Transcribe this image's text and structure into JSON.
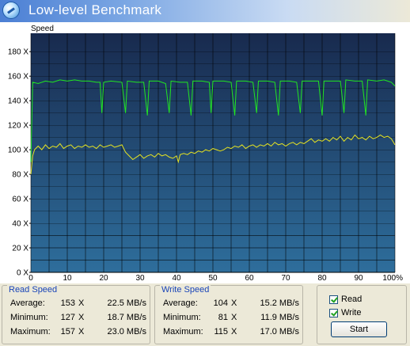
{
  "window": {
    "title": "Low-level Benchmark"
  },
  "chart_data": {
    "type": "line",
    "ylabel": "Speed",
    "y_ticks": [
      "0 X",
      "20 X",
      "40 X",
      "60 X",
      "80 X",
      "100 X",
      "120 X",
      "140 X",
      "160 X",
      "180 X"
    ],
    "x_ticks": [
      "0",
      "10",
      "20",
      "30",
      "40",
      "50",
      "60",
      "70",
      "80",
      "90",
      "100%"
    ],
    "xlim": [
      0,
      100
    ],
    "ylim": [
      0,
      195
    ],
    "grid": true,
    "colors": {
      "background_top": "#182a4e",
      "background_bottom": "#2e6e9c",
      "grid": "#000000",
      "read": "#21e621",
      "write": "#e6e321"
    },
    "series": [
      {
        "key": "read",
        "values": [
          [
            0,
            90
          ],
          [
            0.5,
            155
          ],
          [
            2,
            154
          ],
          [
            4,
            156
          ],
          [
            6,
            155
          ],
          [
            8,
            157
          ],
          [
            10,
            156
          ],
          [
            12,
            157
          ],
          [
            14,
            156
          ],
          [
            16,
            156
          ],
          [
            18,
            155
          ],
          [
            19,
            155
          ],
          [
            19.5,
            130
          ],
          [
            20,
            155
          ],
          [
            22,
            156
          ],
          [
            25,
            155
          ],
          [
            26,
            130
          ],
          [
            26.5,
            156
          ],
          [
            29,
            155
          ],
          [
            31,
            155
          ],
          [
            32,
            128
          ],
          [
            32.5,
            156
          ],
          [
            35,
            156
          ],
          [
            37,
            154
          ],
          [
            38,
            130
          ],
          [
            38.5,
            156
          ],
          [
            41,
            155
          ],
          [
            43,
            155
          ],
          [
            44,
            128
          ],
          [
            44.5,
            156
          ],
          [
            47,
            156
          ],
          [
            49,
            155
          ],
          [
            49.5,
            130
          ],
          [
            50,
            156
          ],
          [
            53,
            156
          ],
          [
            55,
            155
          ],
          [
            56,
            128
          ],
          [
            56.5,
            156
          ],
          [
            59,
            156
          ],
          [
            61,
            155
          ],
          [
            62,
            130
          ],
          [
            62.5,
            156
          ],
          [
            65,
            156
          ],
          [
            67,
            155
          ],
          [
            68,
            128
          ],
          [
            68.5,
            156
          ],
          [
            71,
            156
          ],
          [
            73,
            155
          ],
          [
            74,
            130
          ],
          [
            74.5,
            156
          ],
          [
            77,
            156
          ],
          [
            79,
            156
          ],
          [
            80,
            128
          ],
          [
            80.5,
            156
          ],
          [
            83,
            156
          ],
          [
            85,
            156
          ],
          [
            86,
            130
          ],
          [
            86.5,
            157
          ],
          [
            89,
            156
          ],
          [
            91,
            156
          ],
          [
            92,
            128
          ],
          [
            92.5,
            157
          ],
          [
            95,
            156
          ],
          [
            97,
            157
          ],
          [
            98,
            156
          ],
          [
            99,
            155
          ],
          [
            100,
            152
          ]
        ]
      },
      {
        "key": "write",
        "values": [
          [
            0,
            80
          ],
          [
            0.5,
            95
          ],
          [
            1,
            100
          ],
          [
            2,
            103
          ],
          [
            3,
            100
          ],
          [
            4,
            104
          ],
          [
            5,
            101
          ],
          [
            6,
            103
          ],
          [
            7,
            102
          ],
          [
            8,
            105
          ],
          [
            9,
            101
          ],
          [
            10,
            103
          ],
          [
            11,
            104
          ],
          [
            12,
            101
          ],
          [
            13,
            103
          ],
          [
            14,
            102
          ],
          [
            15,
            104
          ],
          [
            16,
            102
          ],
          [
            17,
            103
          ],
          [
            18,
            101
          ],
          [
            19,
            104
          ],
          [
            20,
            102
          ],
          [
            21,
            103
          ],
          [
            22,
            104
          ],
          [
            23,
            102
          ],
          [
            24,
            103
          ],
          [
            25,
            104
          ],
          [
            26,
            98
          ],
          [
            27,
            95
          ],
          [
            28,
            92
          ],
          [
            29,
            94
          ],
          [
            30,
            96
          ],
          [
            31,
            93
          ],
          [
            32,
            95
          ],
          [
            33,
            96
          ],
          [
            34,
            94
          ],
          [
            35,
            97
          ],
          [
            36,
            95
          ],
          [
            37,
            96
          ],
          [
            38,
            94
          ],
          [
            39,
            93
          ],
          [
            40,
            95
          ],
          [
            40.5,
            90
          ],
          [
            41,
            96
          ],
          [
            42,
            97
          ],
          [
            43,
            96
          ],
          [
            44,
            98
          ],
          [
            45,
            97
          ],
          [
            46,
            99
          ],
          [
            47,
            98
          ],
          [
            48,
            100
          ],
          [
            49,
            99
          ],
          [
            50,
            101
          ],
          [
            51,
            100
          ],
          [
            52,
            99
          ],
          [
            53,
            100
          ],
          [
            54,
            102
          ],
          [
            55,
            101
          ],
          [
            56,
            103
          ],
          [
            57,
            102
          ],
          [
            58,
            104
          ],
          [
            59,
            101
          ],
          [
            60,
            103
          ],
          [
            61,
            104
          ],
          [
            62,
            102
          ],
          [
            63,
            104
          ],
          [
            64,
            103
          ],
          [
            65,
            105
          ],
          [
            66,
            103
          ],
          [
            67,
            106
          ],
          [
            68,
            104
          ],
          [
            69,
            105
          ],
          [
            70,
            103
          ],
          [
            71,
            105
          ],
          [
            72,
            106
          ],
          [
            73,
            104
          ],
          [
            74,
            106
          ],
          [
            75,
            105
          ],
          [
            76,
            107
          ],
          [
            77,
            109
          ],
          [
            78,
            106
          ],
          [
            79,
            108
          ],
          [
            80,
            107
          ],
          [
            81,
            109
          ],
          [
            82,
            107
          ],
          [
            83,
            110
          ],
          [
            84,
            108
          ],
          [
            85,
            111
          ],
          [
            86,
            107
          ],
          [
            87,
            110
          ],
          [
            88,
            108
          ],
          [
            89,
            112
          ],
          [
            90,
            109
          ],
          [
            91,
            110
          ],
          [
            92,
            108
          ],
          [
            93,
            111
          ],
          [
            94,
            109
          ],
          [
            95,
            110
          ],
          [
            96,
            112
          ],
          [
            97,
            110
          ],
          [
            98,
            111
          ],
          [
            99,
            109
          ],
          [
            100,
            104
          ]
        ]
      }
    ]
  },
  "read_speed": {
    "title": "Read Speed",
    "rows": [
      {
        "label": "Average:",
        "x": "153",
        "mbs": "22.5 MB/s"
      },
      {
        "label": "Minimum:",
        "x": "127",
        "mbs": "18.7 MB/s"
      },
      {
        "label": "Maximum:",
        "x": "157",
        "mbs": "23.0 MB/s"
      }
    ]
  },
  "write_speed": {
    "title": "Write Speed",
    "rows": [
      {
        "label": "Average:",
        "x": "104",
        "mbs": "15.2 MB/s"
      },
      {
        "label": "Minimum:",
        "x": "81",
        "mbs": "11.9 MB/s"
      },
      {
        "label": "Maximum:",
        "x": "115",
        "mbs": "17.0 MB/s"
      }
    ]
  },
  "options": {
    "read_label": "Read",
    "read_checked": true,
    "write_label": "Write",
    "write_checked": true
  },
  "start_button": {
    "label": "Start"
  },
  "x_unit_symbol": "X"
}
